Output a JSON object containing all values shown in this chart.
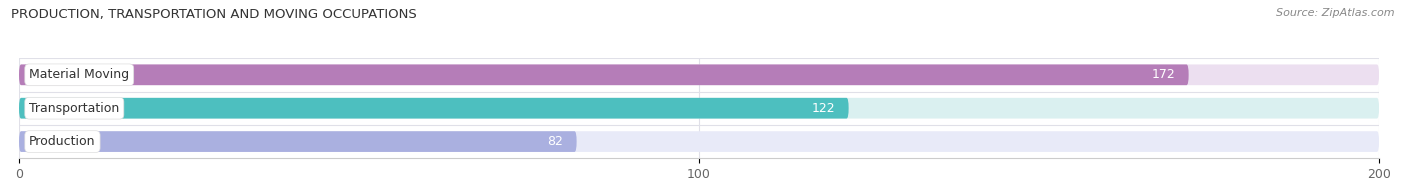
{
  "title": "PRODUCTION, TRANSPORTATION AND MOVING OCCUPATIONS",
  "source": "Source: ZipAtlas.com",
  "categories": [
    "Material Moving",
    "Transportation",
    "Production"
  ],
  "values": [
    172,
    122,
    82
  ],
  "bar_colors": [
    "#b57db8",
    "#4dbfbf",
    "#aab0e0"
  ],
  "bar_bg_colors": [
    "#ecdff0",
    "#daf0f0",
    "#e8eaf8"
  ],
  "xlim": [
    0,
    200
  ],
  "xticks": [
    0,
    100,
    200
  ],
  "figsize": [
    14.06,
    1.96
  ],
  "dpi": 100,
  "bg_color": "#ffffff",
  "bar_height": 0.62,
  "value_color": "#ffffff",
  "value_color_outside": "#555555",
  "title_fontsize": 9.5,
  "source_fontsize": 8,
  "label_fontsize": 9,
  "tick_fontsize": 9,
  "bar_sep_color": "#e0e0e8"
}
